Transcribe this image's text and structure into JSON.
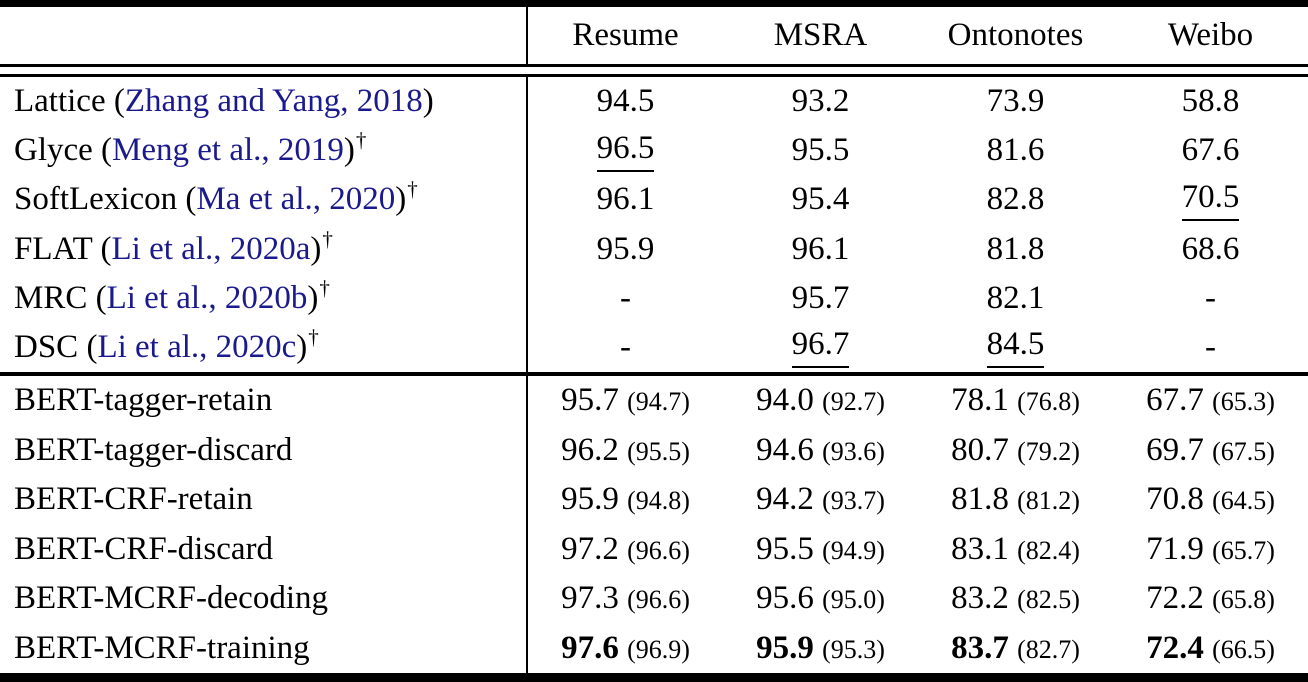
{
  "table": {
    "header": {
      "corner": "",
      "cols": [
        "Resume",
        "MSRA",
        "Ontonotes",
        "Weibo"
      ]
    },
    "prior_methods": [
      {
        "name": "Lattice",
        "citation": "Zhang and Yang, 2018",
        "dagger": false,
        "values": [
          {
            "text": "94.5"
          },
          {
            "text": "93.2"
          },
          {
            "text": "73.9"
          },
          {
            "text": "58.8"
          }
        ]
      },
      {
        "name": "Glyce",
        "citation": "Meng et al., 2019",
        "dagger": true,
        "values": [
          {
            "text": "96.5",
            "underline": true
          },
          {
            "text": "95.5"
          },
          {
            "text": "81.6"
          },
          {
            "text": "67.6"
          }
        ]
      },
      {
        "name": "SoftLexicon",
        "citation": "Ma et al., 2020",
        "dagger": true,
        "values": [
          {
            "text": "96.1"
          },
          {
            "text": "95.4"
          },
          {
            "text": "82.8"
          },
          {
            "text": "70.5",
            "underline": true
          }
        ]
      },
      {
        "name": "FLAT",
        "citation": "Li et al., 2020a",
        "dagger": true,
        "values": [
          {
            "text": "95.9"
          },
          {
            "text": "96.1"
          },
          {
            "text": "81.8"
          },
          {
            "text": "68.6"
          }
        ]
      },
      {
        "name": "MRC",
        "citation": "Li et al., 2020b",
        "dagger": true,
        "values": [
          {
            "text": "-"
          },
          {
            "text": "95.7"
          },
          {
            "text": "82.1"
          },
          {
            "text": "-"
          }
        ]
      },
      {
        "name": "DSC",
        "citation": "Li et al., 2020c",
        "dagger": true,
        "values": [
          {
            "text": "-"
          },
          {
            "text": "96.7",
            "underline": true
          },
          {
            "text": "84.5",
            "underline": true
          },
          {
            "text": "-"
          }
        ]
      }
    ],
    "our_methods": [
      {
        "name": "BERT-tagger-retain",
        "bold": false,
        "values": [
          {
            "main": "95.7",
            "paren": "(94.7)"
          },
          {
            "main": "94.0",
            "paren": "(92.7)"
          },
          {
            "main": "78.1",
            "paren": "(76.8)"
          },
          {
            "main": "67.7",
            "paren": "(65.3)"
          }
        ]
      },
      {
        "name": "BERT-tagger-discard",
        "bold": false,
        "values": [
          {
            "main": "96.2",
            "paren": "(95.5)"
          },
          {
            "main": "94.6",
            "paren": "(93.6)"
          },
          {
            "main": "80.7",
            "paren": "(79.2)"
          },
          {
            "main": "69.7",
            "paren": "(67.5)"
          }
        ]
      },
      {
        "name": "BERT-CRF-retain",
        "bold": false,
        "values": [
          {
            "main": "95.9",
            "paren": "(94.8)"
          },
          {
            "main": "94.2",
            "paren": "(93.7)"
          },
          {
            "main": "81.8",
            "paren": "(81.2)"
          },
          {
            "main": "70.8",
            "paren": "(64.5)"
          }
        ]
      },
      {
        "name": "BERT-CRF-discard",
        "bold": false,
        "values": [
          {
            "main": "97.2",
            "paren": "(96.6)"
          },
          {
            "main": "95.5",
            "paren": "(94.9)"
          },
          {
            "main": "83.1",
            "paren": "(82.4)"
          },
          {
            "main": "71.9",
            "paren": "(65.7)"
          }
        ]
      },
      {
        "name": "BERT-MCRF-decoding",
        "bold": false,
        "values": [
          {
            "main": "97.3",
            "paren": "(96.6)"
          },
          {
            "main": "95.6",
            "paren": "(95.0)"
          },
          {
            "main": "83.2",
            "paren": "(82.5)"
          },
          {
            "main": "72.2",
            "paren": "(65.8)"
          }
        ]
      },
      {
        "name": "BERT-MCRF-training",
        "bold": true,
        "values": [
          {
            "main": "97.6",
            "paren": "(96.9)"
          },
          {
            "main": "95.9",
            "paren": "(95.3)"
          },
          {
            "main": "83.7",
            "paren": "(82.7)"
          },
          {
            "main": "72.4",
            "paren": "(66.5)"
          }
        ]
      }
    ],
    "dagger_symbol": "†",
    "colors": {
      "citation": "#1a1a8c",
      "text": "#000000",
      "rule": "#000000",
      "background": "#ffffff"
    }
  }
}
